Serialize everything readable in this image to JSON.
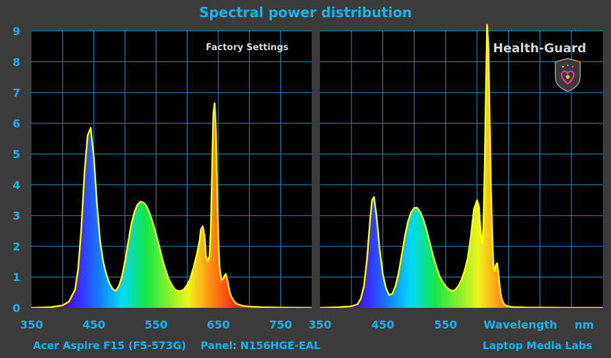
{
  "title": "Spectral power distribution",
  "footer": {
    "device": "Acer Aspire F15 (F5-573G)",
    "panel": "Panel: N156HGE-EAL",
    "credit": "Laptop Media Labs"
  },
  "colors": {
    "background": "#3b3b3b",
    "plot_bg": "#000000",
    "grid": "#1e78a8",
    "curve": "#ffff00",
    "text_accent": "#18b4e6"
  },
  "icons": [
    "shield-heart-icon"
  ],
  "chart_data": [
    {
      "type": "area",
      "annotation": "Factory Settings",
      "xlabel": "",
      "ylabel": "",
      "xlim": [
        350,
        800
      ],
      "ylim": [
        0,
        9
      ],
      "yticks": [
        "0",
        "1",
        "2",
        "3",
        "4",
        "5",
        "6",
        "7",
        "8",
        "9"
      ],
      "xticks": [
        "350",
        "450",
        "550",
        "650",
        "750"
      ],
      "grid": true,
      "x": [
        350,
        380,
        400,
        410,
        420,
        425,
        430,
        435,
        440,
        445,
        450,
        455,
        460,
        465,
        470,
        475,
        480,
        485,
        490,
        495,
        500,
        505,
        510,
        515,
        520,
        525,
        530,
        535,
        540,
        545,
        550,
        555,
        560,
        565,
        570,
        575,
        580,
        585,
        590,
        595,
        600,
        605,
        610,
        615,
        620,
        622,
        625,
        628,
        630,
        633,
        636,
        638,
        640,
        642,
        644,
        646,
        648,
        650,
        652,
        655,
        658,
        660,
        662,
        665,
        668,
        670,
        675,
        680,
        690,
        700,
        720,
        750,
        800
      ],
      "values": [
        0.0,
        0.02,
        0.08,
        0.2,
        0.6,
        1.3,
        2.6,
        4.4,
        5.6,
        5.85,
        4.9,
        3.4,
        2.2,
        1.5,
        1.1,
        0.8,
        0.62,
        0.55,
        0.7,
        1.0,
        1.5,
        2.1,
        2.7,
        3.1,
        3.35,
        3.45,
        3.42,
        3.3,
        3.05,
        2.75,
        2.4,
        2.0,
        1.6,
        1.25,
        0.95,
        0.75,
        0.6,
        0.55,
        0.55,
        0.6,
        0.75,
        0.95,
        1.3,
        1.7,
        2.2,
        2.55,
        2.65,
        2.3,
        1.7,
        1.5,
        1.7,
        2.6,
        4.5,
        6.3,
        6.65,
        5.8,
        3.8,
        2.2,
        1.3,
        0.9,
        0.95,
        1.05,
        1.1,
        0.85,
        0.55,
        0.4,
        0.22,
        0.12,
        0.06,
        0.04,
        0.02,
        0.01,
        0.0
      ]
    },
    {
      "type": "area",
      "annotation": "Health-Guard",
      "xlabel": "Wavelength",
      "x_unit": "nm",
      "ylabel": "",
      "xlim": [
        350,
        800
      ],
      "ylim": [
        0,
        9
      ],
      "xticks": [
        "350",
        "450",
        "550"
      ],
      "grid": true,
      "x": [
        350,
        380,
        400,
        410,
        415,
        420,
        425,
        430,
        433,
        436,
        440,
        445,
        450,
        455,
        460,
        465,
        470,
        475,
        480,
        485,
        490,
        495,
        500,
        505,
        510,
        515,
        520,
        525,
        530,
        535,
        540,
        545,
        550,
        555,
        560,
        565,
        570,
        575,
        580,
        585,
        590,
        595,
        600,
        603,
        606,
        608,
        610,
        612,
        614,
        616,
        618,
        620,
        622,
        624,
        626,
        628,
        630,
        632,
        634,
        636,
        638,
        640,
        642,
        644,
        646,
        648,
        650,
        652,
        655,
        660,
        665,
        670,
        680,
        700,
        750,
        800
      ],
      "values": [
        0.0,
        0.02,
        0.05,
        0.12,
        0.3,
        0.7,
        1.6,
        2.9,
        3.5,
        3.6,
        3.0,
        1.9,
        1.1,
        0.65,
        0.42,
        0.45,
        0.7,
        1.1,
        1.7,
        2.3,
        2.8,
        3.1,
        3.25,
        3.25,
        3.1,
        2.85,
        2.5,
        2.1,
        1.7,
        1.35,
        1.05,
        0.85,
        0.7,
        0.6,
        0.55,
        0.58,
        0.7,
        0.9,
        1.2,
        1.6,
        2.3,
        3.2,
        3.5,
        3.3,
        2.4,
        2.1,
        2.6,
        4.5,
        7.0,
        9.2,
        8.5,
        6.2,
        4.0,
        2.4,
        1.4,
        1.2,
        1.4,
        1.45,
        1.1,
        0.7,
        0.4,
        0.25,
        0.15,
        0.1,
        0.08,
        0.06,
        0.05,
        0.04,
        0.03,
        0.02,
        0.02,
        0.02,
        0.01,
        0.01,
        0.0,
        0.0
      ]
    }
  ]
}
